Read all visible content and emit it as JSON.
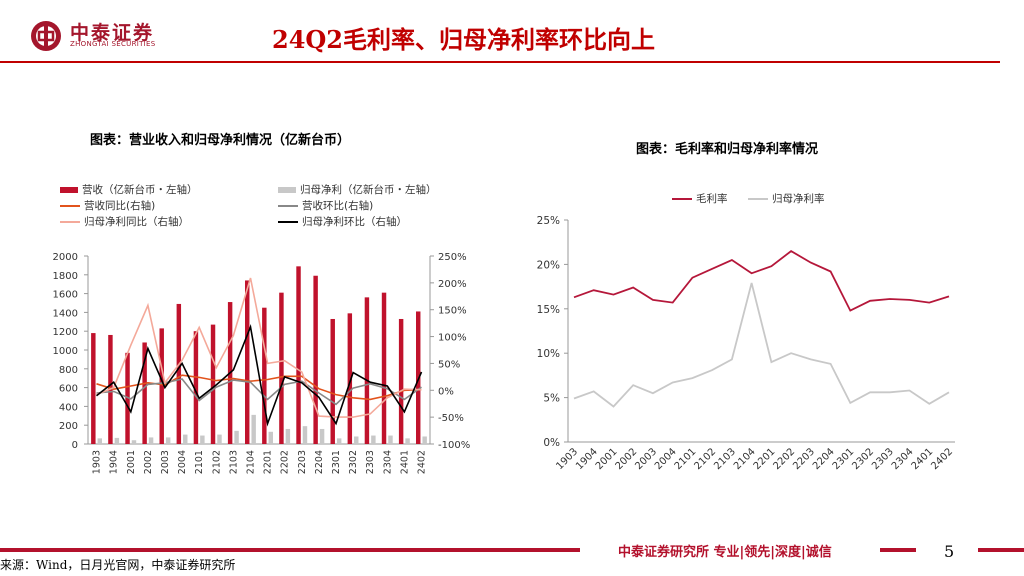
{
  "header": {
    "logo_cn": "中泰证券",
    "logo_en": "ZHONGTAI SECURITIES",
    "title": "24Q2毛利率、归母净利率环比向上",
    "title_color": "#c00000"
  },
  "chart1": {
    "title": "图表：营业收入和归母净利情况（亿新台币）",
    "legend": [
      {
        "label": "营收（亿新台币・左轴）",
        "kind": "bar",
        "color": "#c0122c"
      },
      {
        "label": "归母净利（亿新台币・左轴）",
        "kind": "bar",
        "color": "#c8c8c8"
      },
      {
        "label": "营收同比(右轴)",
        "kind": "line",
        "color": "#e2531c"
      },
      {
        "label": "营收环比(右轴)",
        "kind": "line",
        "color": "#888888"
      },
      {
        "label": "归母净利同比（右轴）",
        "kind": "line",
        "color": "#f4a99a"
      },
      {
        "label": "归母净利环比（右轴）",
        "kind": "line",
        "color": "#000000"
      }
    ],
    "left_ticks": [
      "2000",
      "1800",
      "1600",
      "1400",
      "1200",
      "1000",
      "800",
      "600",
      "400",
      "200",
      "0"
    ],
    "right_ticks": [
      "250%",
      "200%",
      "150%",
      "100%",
      "50%",
      "0%",
      "-50%",
      "-100%"
    ]
  },
  "chart2": {
    "title": "图表：毛利率和归母净利率情况",
    "legend": [
      {
        "label": "毛利率",
        "color": "#b5173a"
      },
      {
        "label": "归母净利率",
        "color": "#c8c8c8"
      }
    ],
    "y_ticks": [
      "25%",
      "20%",
      "15%",
      "10%",
      "5%",
      "0%"
    ]
  },
  "chart_data": [
    {
      "type": "bar",
      "title": "图表：营业收入和归母净利情况（亿新台币）",
      "categories": [
        "1903",
        "1904",
        "2001",
        "2002",
        "2003",
        "2004",
        "2101",
        "2102",
        "2103",
        "2104",
        "2201",
        "2202",
        "2203",
        "2204",
        "2301",
        "2302",
        "2303",
        "2304",
        "2401",
        "2402"
      ],
      "ylim": [
        0,
        2000
      ],
      "y2lim": [
        -100,
        250
      ],
      "series": [
        {
          "name": "营收（亿新台币・左轴）",
          "axis": "left",
          "kind": "bar",
          "color": "#c0122c",
          "values": [
            1180,
            1160,
            970,
            1080,
            1230,
            1490,
            1200,
            1270,
            1510,
            1740,
            1450,
            1610,
            1890,
            1790,
            1330,
            1390,
            1560,
            1610,
            1330,
            1410
          ]
        },
        {
          "name": "归母净利（亿新台币・左轴）",
          "axis": "left",
          "kind": "bar",
          "color": "#c8c8c8",
          "values": [
            60,
            65,
            40,
            70,
            70,
            100,
            90,
            100,
            140,
            310,
            130,
            160,
            190,
            160,
            60,
            80,
            90,
            90,
            60,
            80
          ]
        },
        {
          "name": "营收同比(右轴)",
          "axis": "right",
          "kind": "line",
          "color": "#e2531c",
          "values": [
            12,
            2,
            8,
            14,
            10,
            28,
            24,
            18,
            22,
            17,
            20,
            26,
            26,
            3,
            -8,
            -14,
            -17,
            -10,
            0,
            1
          ]
        },
        {
          "name": "营收环比(右轴)",
          "axis": "right",
          "kind": "line",
          "color": "#888888",
          "values": [
            -5,
            -2,
            -16,
            11,
            14,
            21,
            -19,
            6,
            19,
            15,
            -17,
            11,
            17,
            -5,
            -26,
            4,
            12,
            3,
            -17,
            6
          ]
        },
        {
          "name": "归母净利同比（右轴）",
          "axis": "right",
          "kind": "line",
          "color": "#f4a99a",
          "values": [
            -8,
            5,
            84,
            158,
            14,
            56,
            117,
            42,
            102,
            209,
            50,
            55,
            34,
            -48,
            -50,
            -50,
            -44,
            -14,
            2,
            1
          ]
        },
        {
          "name": "归母净利环比（右轴）",
          "axis": "right",
          "kind": "line",
          "color": "#000000",
          "values": [
            -10,
            15,
            -40,
            78,
            5,
            50,
            -15,
            10,
            38,
            118,
            -62,
            25,
            14,
            -13,
            -62,
            33,
            15,
            8,
            -40,
            34
          ]
        }
      ]
    },
    {
      "type": "line",
      "title": "图表：毛利率和归母净利率情况",
      "categories": [
        "1903",
        "1904",
        "2001",
        "2002",
        "2003",
        "2004",
        "2101",
        "2102",
        "2103",
        "2104",
        "2201",
        "2202",
        "2203",
        "2204",
        "2301",
        "2302",
        "2303",
        "2304",
        "2401",
        "2402"
      ],
      "ylim": [
        0,
        25
      ],
      "ylabel_format": "%",
      "series": [
        {
          "name": "毛利率",
          "color": "#b5173a",
          "values": [
            16.3,
            17.1,
            16.6,
            17.4,
            16.0,
            15.7,
            18.5,
            19.5,
            20.5,
            19.0,
            19.8,
            21.5,
            20.2,
            19.2,
            14.8,
            15.9,
            16.1,
            16.0,
            15.7,
            16.4
          ]
        },
        {
          "name": "归母净利率",
          "color": "#c8c8c8",
          "values": [
            4.9,
            5.7,
            4.0,
            6.4,
            5.5,
            6.7,
            7.2,
            8.1,
            9.3,
            17.9,
            9.0,
            10.0,
            9.3,
            8.8,
            4.4,
            5.6,
            5.6,
            5.8,
            4.3,
            5.6
          ]
        }
      ]
    }
  ],
  "footer": {
    "slogan": "中泰证券研究所 专业|领先|深度|诚信",
    "page_number": "5",
    "source": "来源：Wind，日月光官网，中泰证券研究所"
  }
}
